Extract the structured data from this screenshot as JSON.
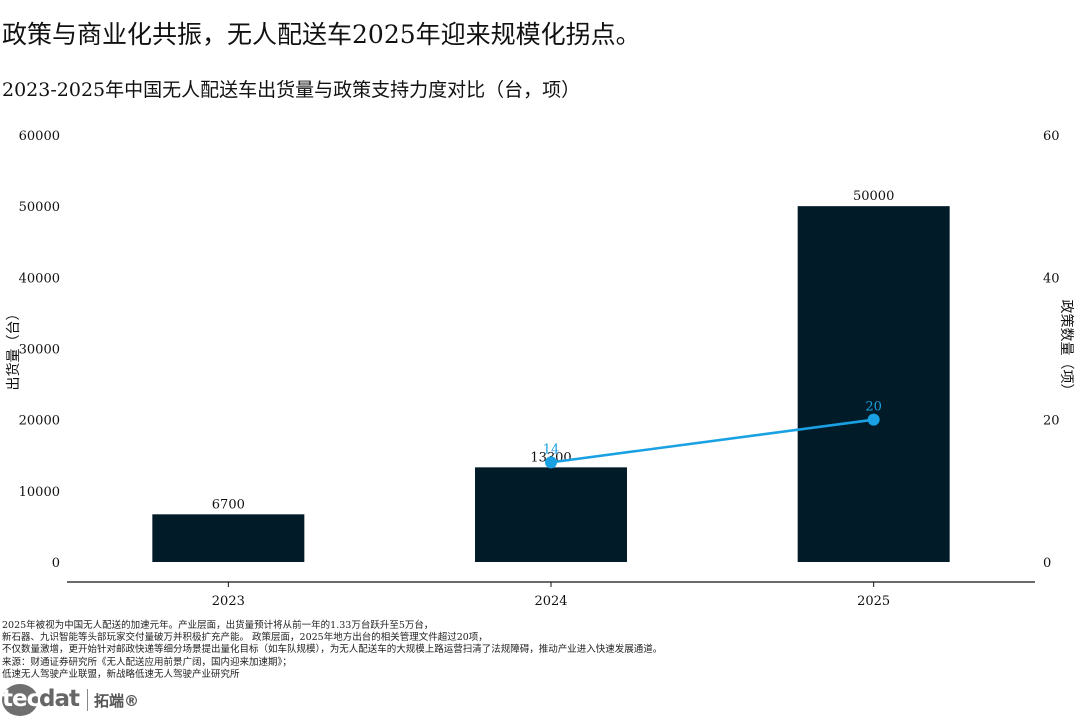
{
  "headline": "政策与商业化共振，无人配送车2025年迎来规模化拐点。",
  "logo": {
    "prefix": "tec",
    "suffix": "dat",
    "cn": "拓端®"
  },
  "notes": [
    "2025年被视为中国无人配送的加速元年。产业层面，出货量预计将从前一年的1.33万台跃升至5万台，",
    "新石器、九识智能等头部玩家交付量破万并积极扩充产能。 政策层面，2025年地方出台的相关管理文件超过20项，",
    "不仅数量激增，更开始针对邮政快递等细分场景提出量化目标（如车队规模），为无人配送车的大规模上路运营扫清了法规障碍，推动产业进入快速发展通道。",
    "来源：财通证券研究所《无人配送应用前景广阔，国内迎来加速期》；",
    "低速无人驾驶产业联盟，新战略低速无人驾驶产业研究所"
  ],
  "colors": {
    "bar": "#021b28",
    "line": "#1aa1e3"
  },
  "chart_data": {
    "type": "bar+line",
    "title": "2023-2025年中国无人配送车出货量与政策支持力度对比（台，项）",
    "categories": [
      "2023",
      "2024",
      "2025"
    ],
    "bars": {
      "name": "出货量（台）",
      "values": [
        6700,
        13300,
        50000
      ],
      "labels": [
        "6700",
        "13300",
        "50000"
      ]
    },
    "line": {
      "name": "政策数量（项）",
      "x": [
        "2024",
        "2025"
      ],
      "values": [
        14,
        20
      ],
      "labels": [
        "14",
        "20"
      ]
    },
    "ylabel": "出货量（台）",
    "y2label": "政策数量（项）",
    "ylim": [
      0,
      60000
    ],
    "yticks": [
      "0",
      "10000",
      "20000",
      "30000",
      "40000",
      "50000",
      "60000"
    ],
    "y2lim": [
      0,
      60
    ],
    "y2ticks": [
      "0",
      "20",
      "40",
      "60"
    ],
    "grid": false,
    "legend": "none"
  }
}
